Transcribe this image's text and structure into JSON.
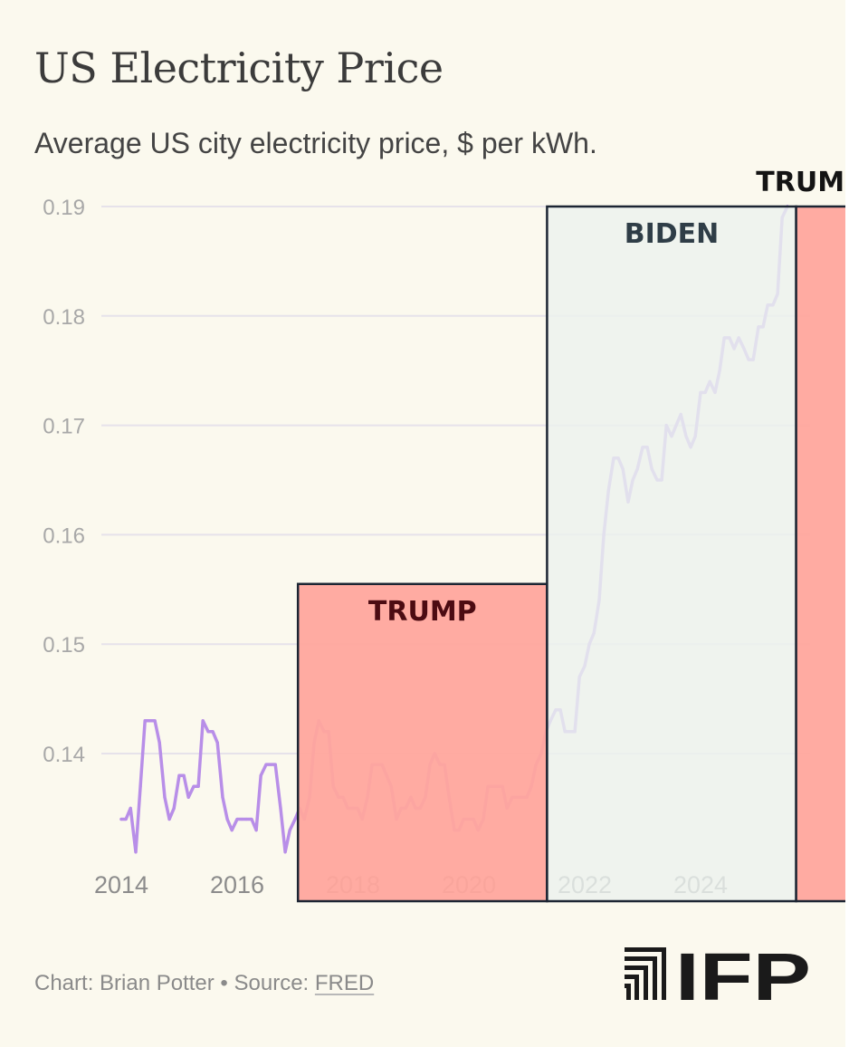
{
  "chart_data": {
    "type": "line",
    "title": "US Electricity Price",
    "subtitle": "Average US city electricity price, $ per kWh.",
    "xlabel": "",
    "ylabel": "",
    "xlim": [
      2013.9,
      2025.6
    ],
    "ylim": [
      0.13,
      0.19
    ],
    "y_ticks": [
      {
        "value": 0.19,
        "label": "0.19"
      },
      {
        "value": 0.18,
        "label": "0.18"
      },
      {
        "value": 0.17,
        "label": "0.17"
      },
      {
        "value": 0.16,
        "label": "0.16"
      },
      {
        "value": 0.15,
        "label": "0.15"
      },
      {
        "value": 0.14,
        "label": "0.14"
      }
    ],
    "x_ticks": [
      {
        "value": 2014,
        "label": "2014"
      },
      {
        "value": 2016,
        "label": "2016"
      },
      {
        "value": 2018,
        "label": "2018"
      },
      {
        "value": 2020,
        "label": "2020"
      },
      {
        "value": 2022,
        "label": "2022"
      },
      {
        "value": 2024,
        "label": "2024"
      }
    ],
    "grid": true,
    "line_color": "#b88ee8",
    "series": [
      {
        "name": "Average US city electricity price",
        "x": [
          2014.0,
          2014.08,
          2014.16,
          2014.25,
          2014.33,
          2014.41,
          2014.5,
          2014.58,
          2014.66,
          2014.75,
          2014.83,
          2014.91,
          2015.0,
          2015.08,
          2015.16,
          2015.25,
          2015.33,
          2015.41,
          2015.5,
          2015.58,
          2015.66,
          2015.75,
          2015.83,
          2015.91,
          2016.0,
          2016.08,
          2016.16,
          2016.25,
          2016.33,
          2016.41,
          2016.5,
          2016.58,
          2016.66,
          2016.75,
          2016.83,
          2016.91,
          2017.0,
          2017.08,
          2017.16,
          2017.25,
          2017.33,
          2017.41,
          2017.5,
          2017.58,
          2017.66,
          2017.75,
          2017.83,
          2017.91,
          2018.0,
          2018.08,
          2018.16,
          2018.25,
          2018.33,
          2018.41,
          2018.5,
          2018.58,
          2018.66,
          2018.75,
          2018.83,
          2018.91,
          2019.0,
          2019.08,
          2019.16,
          2019.25,
          2019.33,
          2019.41,
          2019.5,
          2019.58,
          2019.66,
          2019.75,
          2019.83,
          2019.91,
          2020.0,
          2020.08,
          2020.16,
          2020.25,
          2020.33,
          2020.41,
          2020.5,
          2020.58,
          2020.66,
          2020.75,
          2020.83,
          2020.91,
          2021.0,
          2021.08,
          2021.16,
          2021.25,
          2021.33,
          2021.41,
          2021.5,
          2021.58,
          2021.66,
          2021.75,
          2021.83,
          2021.91,
          2022.0,
          2022.08,
          2022.16,
          2022.25,
          2022.33,
          2022.41,
          2022.5,
          2022.58,
          2022.66,
          2022.75,
          2022.83,
          2022.91,
          2023.0,
          2023.08,
          2023.16,
          2023.25,
          2023.33,
          2023.41,
          2023.5,
          2023.58,
          2023.66,
          2023.75,
          2023.83,
          2023.91,
          2024.0,
          2024.08,
          2024.16,
          2024.25,
          2024.33,
          2024.41,
          2024.5,
          2024.58,
          2024.66,
          2024.75,
          2024.83,
          2024.91,
          2025.0,
          2025.08,
          2025.16,
          2025.25,
          2025.33,
          2025.41,
          2025.5
        ],
        "values": [
          0.134,
          0.134,
          0.135,
          0.131,
          0.137,
          0.143,
          0.143,
          0.143,
          0.141,
          0.136,
          0.134,
          0.135,
          0.138,
          0.138,
          0.136,
          0.137,
          0.137,
          0.143,
          0.142,
          0.142,
          0.141,
          0.136,
          0.134,
          0.133,
          0.134,
          0.134,
          0.134,
          0.134,
          0.133,
          0.138,
          0.139,
          0.139,
          0.139,
          0.135,
          0.131,
          0.133,
          0.134,
          0.135,
          0.134,
          0.136,
          0.141,
          0.143,
          0.142,
          0.142,
          0.137,
          0.136,
          0.136,
          0.135,
          0.135,
          0.135,
          0.134,
          0.136,
          0.139,
          0.139,
          0.139,
          0.138,
          0.137,
          0.134,
          0.135,
          0.135,
          0.136,
          0.135,
          0.135,
          0.136,
          0.139,
          0.14,
          0.139,
          0.139,
          0.136,
          0.133,
          0.133,
          0.134,
          0.134,
          0.134,
          0.133,
          0.134,
          0.137,
          0.137,
          0.137,
          0.137,
          0.135,
          0.136,
          0.136,
          0.136,
          0.136,
          0.137,
          0.139,
          0.14,
          0.142,
          0.143,
          0.144,
          0.144,
          0.142,
          0.142,
          0.142,
          0.147,
          0.148,
          0.15,
          0.151,
          0.154,
          0.16,
          0.164,
          0.167,
          0.167,
          0.166,
          0.163,
          0.165,
          0.166,
          0.168,
          0.168,
          0.166,
          0.165,
          0.165,
          0.17,
          0.169,
          0.17,
          0.171,
          0.169,
          0.168,
          0.169,
          0.173,
          0.173,
          0.174,
          0.173,
          0.175,
          0.178,
          0.178,
          0.177,
          0.178,
          0.177,
          0.176,
          0.176,
          0.179,
          0.179,
          0.181,
          0.181,
          0.182,
          0.189,
          0.19
        ]
      }
    ],
    "annotations": [
      {
        "label": "TRUMP",
        "x_start": 2017.05,
        "x_end": 2021.35,
        "y_top": 0.1555,
        "fill": "#ffa79d",
        "fill_opacity": 0.95,
        "label_color": "#4c0b12"
      },
      {
        "label": "BIDEN",
        "x_start": 2021.35,
        "x_end": 2025.65,
        "y_top": 0.19,
        "fill": "#ecf2ee",
        "fill_opacity": 0.82,
        "label_color": "#2f3d47"
      },
      {
        "label": "TRUMP",
        "x_start": 2025.65,
        "x_end": 2026.86,
        "y_top": 0.19,
        "fill": "#ffa79d",
        "fill_opacity": 0.95,
        "label_color": "#141414"
      }
    ],
    "box_outline_color": "#1c2533"
  },
  "footer": {
    "credit": "Chart: Brian Potter",
    "separator": "•",
    "source_prefix": "Source:",
    "source_name": "FRED"
  },
  "logo": {
    "text": "IFP",
    "color": "#1a1a1a"
  }
}
